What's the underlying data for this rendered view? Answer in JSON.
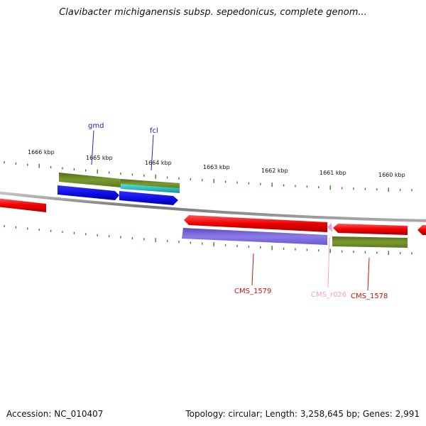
{
  "title": "Clavibacter michiganensis subsp. sepedonicus, complete genom...",
  "footer": {
    "accession": "Accession: NC_010407",
    "summary": "Topology: circular; Length: 3,258,645 bp; Genes: 2,991"
  },
  "colors": {
    "backbone": "#8a8a8a",
    "cds_red": "#ee0000",
    "gene_green": "#6b8e23",
    "gene_blue": "#1010e8",
    "cyan": "#22cccc",
    "purple": "#7b68d8",
    "rna_pink": "#f0a0d0",
    "tick": "#2e8b22"
  },
  "scale_labels": [
    {
      "text": "1666 kbp",
      "pos": 1666
    },
    {
      "text": "1665 kbp",
      "pos": 1665
    },
    {
      "text": "1664 kbp",
      "pos": 1664
    },
    {
      "text": "1663 kbp",
      "pos": 1663
    },
    {
      "text": "1662 kbp",
      "pos": 1662
    },
    {
      "text": "1661 kbp",
      "pos": 1661
    },
    {
      "text": "1660 kbp",
      "pos": 1660
    }
  ],
  "gene_labels": {
    "gmd": "gmd",
    "fcl": "fcl",
    "cms1579": "CMS_1579",
    "cmsr026": "CMS_r026",
    "cms1578": "CMS_1578"
  }
}
